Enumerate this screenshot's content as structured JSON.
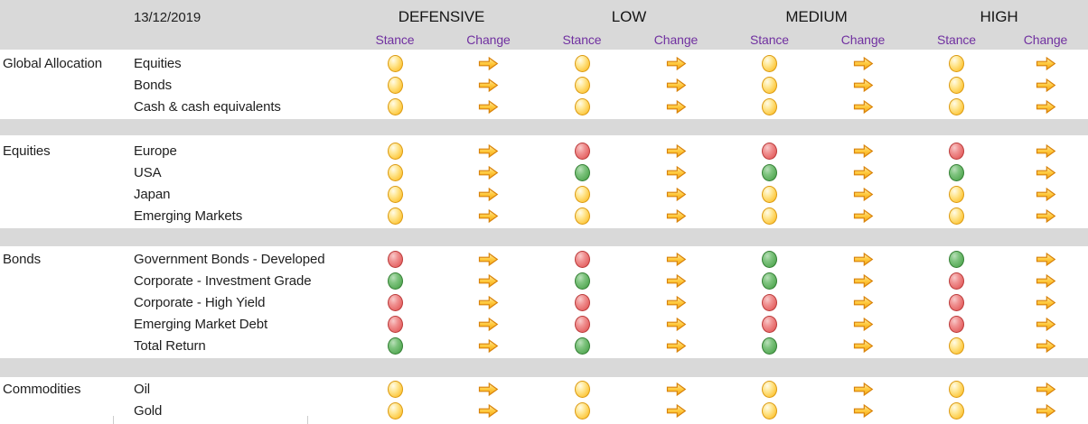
{
  "header": {
    "date": "13/12/2019",
    "stance_label": "Stance",
    "change_label": "Change",
    "profiles": [
      {
        "label": "DEFENSIVE"
      },
      {
        "label": "LOW"
      },
      {
        "label": "MEDIUM"
      },
      {
        "label": "HIGH"
      }
    ]
  },
  "colors": {
    "band_gray": "#d9d9d9",
    "label_purple": "#7030a0",
    "stance_neutral_yellow": "#fcc63d",
    "stance_negative_red": "#e05f5f",
    "stance_positive_green": "#55a855",
    "arrow_fill_yellow": "#ffc93c",
    "arrow_border_orange": "#d8820a",
    "text_black": "#1f1f1f"
  },
  "icons": {
    "stance": "circle-indicator",
    "change": "right-arrow"
  },
  "sections": [
    {
      "group": "Global Allocation",
      "rows": [
        {
          "label": "Equities",
          "stances": [
            "neutral",
            "neutral",
            "neutral",
            "neutral"
          ],
          "changes": [
            "right",
            "right",
            "right",
            "right"
          ]
        },
        {
          "label": "Bonds",
          "stances": [
            "neutral",
            "neutral",
            "neutral",
            "neutral"
          ],
          "changes": [
            "right",
            "right",
            "right",
            "right"
          ]
        },
        {
          "label": "Cash & cash equivalents",
          "stances": [
            "neutral",
            "neutral",
            "neutral",
            "neutral"
          ],
          "changes": [
            "right",
            "right",
            "right",
            "right"
          ]
        }
      ]
    },
    {
      "group": "Equities",
      "rows": [
        {
          "label": "Europe",
          "stances": [
            "neutral",
            "negative",
            "negative",
            "negative"
          ],
          "changes": [
            "right",
            "right",
            "right",
            "right"
          ]
        },
        {
          "label": "USA",
          "stances": [
            "neutral",
            "positive",
            "positive",
            "positive"
          ],
          "changes": [
            "right",
            "right",
            "right",
            "right"
          ]
        },
        {
          "label": "Japan",
          "stances": [
            "neutral",
            "neutral",
            "neutral",
            "neutral"
          ],
          "changes": [
            "right",
            "right",
            "right",
            "right"
          ]
        },
        {
          "label": "Emerging Markets",
          "stances": [
            "neutral",
            "neutral",
            "neutral",
            "neutral"
          ],
          "changes": [
            "right",
            "right",
            "right",
            "right"
          ]
        }
      ]
    },
    {
      "group": "Bonds",
      "rows": [
        {
          "label": "Government Bonds - Developed",
          "stances": [
            "negative",
            "negative",
            "positive",
            "positive"
          ],
          "changes": [
            "right",
            "right",
            "right",
            "right"
          ]
        },
        {
          "label": "Corporate - Investment Grade",
          "stances": [
            "positive",
            "positive",
            "positive",
            "negative"
          ],
          "changes": [
            "right",
            "right",
            "right",
            "right"
          ]
        },
        {
          "label": "Corporate - High Yield",
          "stances": [
            "negative",
            "negative",
            "negative",
            "negative"
          ],
          "changes": [
            "right",
            "right",
            "right",
            "right"
          ]
        },
        {
          "label": "Emerging Market Debt",
          "stances": [
            "negative",
            "negative",
            "negative",
            "negative"
          ],
          "changes": [
            "right",
            "right",
            "right",
            "right"
          ]
        },
        {
          "label": "Total Return",
          "stances": [
            "positive",
            "positive",
            "positive",
            "neutral"
          ],
          "changes": [
            "right",
            "right",
            "right",
            "right"
          ]
        }
      ]
    },
    {
      "group": "Commodities",
      "rows": [
        {
          "label": "Oil",
          "stances": [
            "neutral",
            "neutral",
            "neutral",
            "neutral"
          ],
          "changes": [
            "right",
            "right",
            "right",
            "right"
          ]
        },
        {
          "label": "Gold",
          "stances": [
            "neutral",
            "neutral",
            "neutral",
            "neutral"
          ],
          "changes": [
            "right",
            "right",
            "right",
            "right"
          ]
        }
      ]
    }
  ]
}
